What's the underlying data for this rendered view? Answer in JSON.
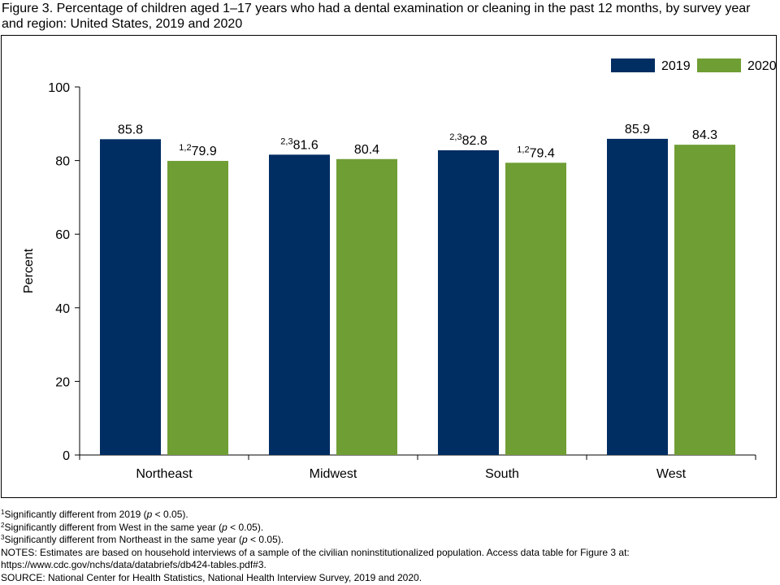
{
  "figure": {
    "title": "Figure 3. Percentage of children aged 1–17 years who had a dental examination or cleaning in the past 12 months, by survey year and region: United States, 2019 and 2020"
  },
  "chart_data": {
    "type": "bar",
    "categories": [
      "Northeast",
      "Midwest",
      "South",
      "West"
    ],
    "series": [
      {
        "name": "2019",
        "color": "#002d62",
        "values": [
          85.8,
          81.6,
          82.8,
          85.9
        ],
        "value_labels": [
          "85.8",
          "81.6",
          "82.8",
          "85.9"
        ],
        "superscripts": [
          "",
          "2,3",
          "2,3",
          ""
        ]
      },
      {
        "name": "2020",
        "color": "#6f9e34",
        "values": [
          79.9,
          80.4,
          79.4,
          84.3
        ],
        "value_labels": [
          "79.9",
          "80.4",
          "79.4",
          "84.3"
        ],
        "superscripts": [
          "1,2",
          "",
          "1,2",
          ""
        ]
      }
    ],
    "ylabel": "Percent",
    "xlabel": "",
    "ylim": [
      0,
      100
    ],
    "yticks": [
      "0",
      "20",
      "40",
      "60",
      "80",
      "100"
    ],
    "grid": false,
    "legend_position": "top-right"
  },
  "notes": {
    "footnote1": {
      "mark": "1",
      "before": "Significantly different from 2019 (",
      "italic": "p",
      "after": " < 0.05)."
    },
    "footnote2": {
      "mark": "2",
      "before": "Significantly different from West in the same year (",
      "italic": "p",
      "after": " < 0.05)."
    },
    "footnote3": {
      "mark": "3",
      "before": "Significantly different from Northeast in the same year (",
      "italic": "p",
      "after": " < 0.05)."
    },
    "notes_line1": "NOTES: Estimates are based on household interviews of a sample of the civilian noninstitutionalized population. Access data table for Figure 3 at:",
    "notes_line2": "https://www.cdc.gov/nchs/data/databriefs/db424-tables.pdf#3.",
    "source": "SOURCE: National Center for Health Statistics, National Health Interview Survey, 2019 and 2020."
  }
}
